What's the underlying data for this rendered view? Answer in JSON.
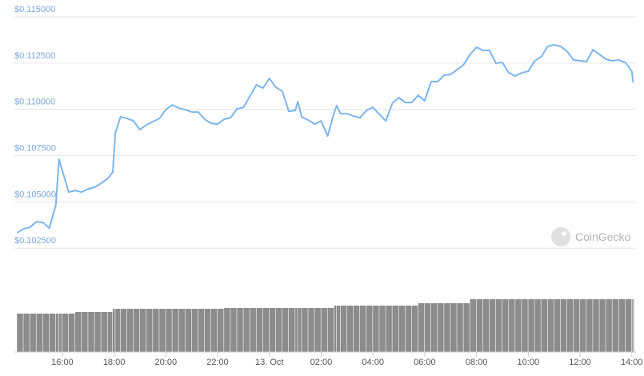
{
  "chart_data": {
    "type": "line",
    "watermark": "CoinGecko",
    "grid": true,
    "color": "#7cb5ec",
    "x": [
      14.25,
      14.5,
      14.75,
      15,
      15.25,
      15.5,
      15.75,
      15.875,
      16,
      16.25,
      16.5,
      16.75,
      17,
      17.25,
      17.5,
      17.75,
      17.95,
      18.05,
      18.25,
      18.5,
      18.75,
      19,
      19.25,
      19.5,
      19.75,
      20,
      20.25,
      20.5,
      20.75,
      21,
      21.25,
      21.5,
      21.75,
      22,
      22.25,
      22.5,
      22.75,
      23,
      23.25,
      23.5,
      23.75,
      24,
      24.25,
      24.5,
      24.75,
      25,
      25.1,
      25.25,
      25.5,
      25.75,
      26,
      26.25,
      26.5,
      26.6,
      26.75,
      27,
      27.25,
      27.5,
      27.75,
      28,
      28.25,
      28.5,
      28.75,
      29,
      29.25,
      29.5,
      29.75,
      30,
      30.25,
      30.5,
      30.75,
      31,
      31.25,
      31.5,
      31.75,
      32,
      32.25,
      32.5,
      32.75,
      33,
      33.25,
      33.5,
      33.75,
      34,
      34.25,
      34.5,
      34.75,
      35,
      35.25,
      35.5,
      35.75,
      36,
      36.25,
      36.5,
      36.75,
      37,
      37.25,
      37.5,
      37.75,
      38,
      38.05
    ],
    "values": [
      0.103322,
      0.103538,
      0.103625,
      0.103928,
      0.103885,
      0.103582,
      0.104836,
      0.107301,
      0.106696,
      0.105528,
      0.105615,
      0.105528,
      0.105701,
      0.105788,
      0.106004,
      0.106263,
      0.106609,
      0.108729,
      0.109594,
      0.109507,
      0.109377,
      0.108902,
      0.109161,
      0.109334,
      0.109507,
      0.109983,
      0.110242,
      0.110069,
      0.109983,
      0.109853,
      0.109853,
      0.109464,
      0.109248,
      0.109204,
      0.109464,
      0.10955,
      0.110026,
      0.110113,
      0.110718,
      0.111324,
      0.111151,
      0.11167,
      0.111194,
      0.110978,
      0.109896,
      0.109939,
      0.110415,
      0.109594,
      0.109421,
      0.109204,
      0.109377,
      0.108556,
      0.10981,
      0.110199,
      0.109767,
      0.109767,
      0.109637,
      0.10955,
      0.10994,
      0.110113,
      0.109723,
      0.109377,
      0.110329,
      0.110632,
      0.110372,
      0.110372,
      0.110761,
      0.110459,
      0.111497,
      0.111497,
      0.111843,
      0.111886,
      0.112145,
      0.112405,
      0.112967,
      0.113356,
      0.113183,
      0.113183,
      0.112491,
      0.112535,
      0.111972,
      0.111799,
      0.111972,
      0.112059,
      0.112621,
      0.112837,
      0.1134,
      0.113486,
      0.1134,
      0.11314,
      0.112664,
      0.112621,
      0.112578,
      0.113227,
      0.112967,
      0.112708,
      0.112621,
      0.112664,
      0.112535,
      0.112059,
      0.111453
    ],
    "xlim": [
      14.15,
      38.1
    ],
    "xticks": [
      {
        "value": 16,
        "label": "16:00"
      },
      {
        "value": 18,
        "label": "18:00"
      },
      {
        "value": 20,
        "label": "20:00"
      },
      {
        "value": 22,
        "label": "22:00"
      },
      {
        "value": 24,
        "label": "13. Oct"
      },
      {
        "value": 26,
        "label": "02:00"
      },
      {
        "value": 28,
        "label": "04:00"
      },
      {
        "value": 30,
        "label": "06:00"
      },
      {
        "value": 32,
        "label": "08:00"
      },
      {
        "value": 34,
        "label": "10:00"
      },
      {
        "value": 36,
        "label": "12:00"
      },
      {
        "value": 38,
        "label": "14:00"
      }
    ],
    "ylim": [
      0.10225,
      0.115
    ],
    "yticks": [
      {
        "value": 0.115,
        "label": "$0.115000"
      },
      {
        "value": 0.1125,
        "label": "$0.112500"
      },
      {
        "value": 0.11,
        "label": "$0.110000"
      },
      {
        "value": 0.1075,
        "label": "$0.107500"
      },
      {
        "value": 0.105,
        "label": "$0.105000"
      },
      {
        "value": 0.1025,
        "label": "$0.102500"
      }
    ],
    "volume": {
      "color": "#8c8c8c",
      "ylim": [
        0,
        70
      ],
      "values": [
        48,
        48,
        48,
        48,
        48,
        48,
        48,
        48,
        48,
        48,
        50,
        50,
        50,
        50,
        50,
        50,
        54,
        54,
        54,
        54,
        54,
        54,
        54,
        54,
        54,
        54,
        54,
        54,
        54,
        54,
        54,
        54,
        54,
        54,
        55,
        55,
        55,
        55,
        55,
        55,
        55,
        55,
        55,
        55,
        55,
        55,
        55,
        55,
        55,
        55,
        55,
        55,
        58,
        58,
        58,
        58,
        58,
        58,
        58,
        58,
        58,
        58,
        58,
        58,
        58,
        58,
        61,
        61,
        61,
        61,
        61,
        61,
        61,
        61,
        66,
        66,
        66,
        66,
        66,
        66,
        66,
        66,
        66,
        66,
        66,
        66,
        66,
        66,
        66,
        66,
        66,
        66,
        66,
        66,
        66,
        66,
        66,
        66,
        66,
        66,
        66
      ]
    }
  }
}
